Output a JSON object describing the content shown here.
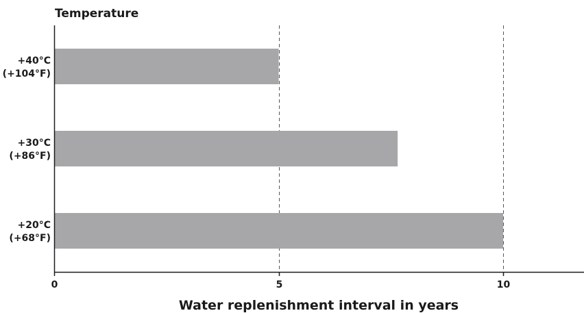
{
  "chart_data": {
    "type": "bar",
    "orientation": "horizontal",
    "title": "Temperature",
    "xlabel": "Water replenishment interval in years",
    "categories": [
      {
        "line1": "+40°C",
        "line2": "(+104°F)"
      },
      {
        "line1": "+30°C",
        "line2": "(+86°F)"
      },
      {
        "line1": "+20°C",
        "line2": "(+68°F)"
      }
    ],
    "values": [
      5,
      7.65,
      10
    ],
    "xlim": [
      0,
      11.8
    ],
    "xticks": [
      "0",
      "5",
      "10"
    ],
    "xtick_values": [
      0,
      5,
      10
    ],
    "gridlines": [
      5,
      10
    ],
    "grid": "vertical dashed at 5 and 10",
    "bar_color": "#a7a7a9",
    "axis_color": "#1a1a1a"
  }
}
